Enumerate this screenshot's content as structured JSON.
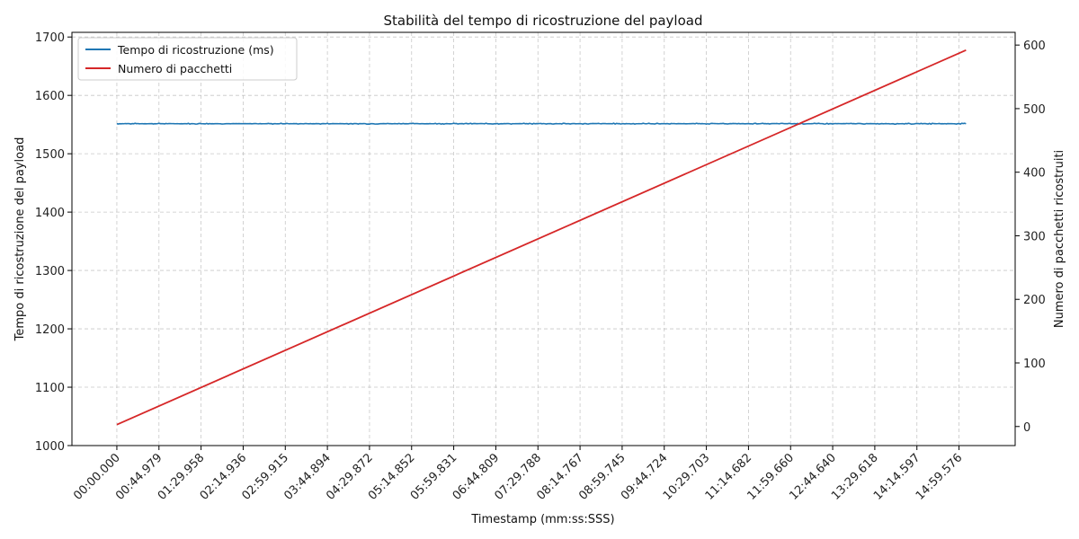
{
  "chart_data": {
    "type": "line",
    "title": "Stabilità del tempo di ricostruzione del payload",
    "xlabel": "Timestamp (mm:ss:SSS)",
    "ylabel": "Tempo di ricostruzione del payload",
    "y2label": "Numero di pacchetti ricostruiti",
    "x_tick_labels": [
      "00:00.000",
      "00:44.979",
      "01:29.958",
      "02:14.936",
      "02:59.915",
      "03:44.894",
      "04:29.872",
      "05:14.852",
      "05:59.831",
      "06:44.809",
      "07:29.788",
      "08:14.767",
      "08:59.745",
      "09:44.724",
      "10:29.703",
      "11:14.682",
      "11:59.660",
      "12:44.640",
      "13:29.618",
      "14:14.597",
      "14:59.576"
    ],
    "x_tick_positions": [
      0,
      30,
      60,
      90,
      120,
      150,
      180,
      210,
      240,
      270,
      300,
      330,
      360,
      390,
      420,
      450,
      480,
      510,
      540,
      570,
      600
    ],
    "xlim": [
      -32,
      640
    ],
    "ylim": [
      1000,
      1708
    ],
    "y_ticks": [
      1000,
      1100,
      1200,
      1300,
      1400,
      1500,
      1600,
      1700
    ],
    "y2lim": [
      -30,
      620
    ],
    "y2_ticks": [
      0,
      100,
      200,
      300,
      400,
      500,
      600
    ],
    "grid": true,
    "legend_position": "top-left",
    "series": [
      {
        "name": "Tempo di ricostruzione (ms)",
        "axis": "left",
        "color": "#1f77b4",
        "x_range": [
          0,
          605
        ],
        "baseline": 1551.5,
        "noise_amplitude": 0.8
      },
      {
        "name": "Numero di pacchetti",
        "axis": "right",
        "color": "#d62728",
        "x": [
          0,
          605
        ],
        "values": [
          3,
          592
        ]
      }
    ]
  }
}
